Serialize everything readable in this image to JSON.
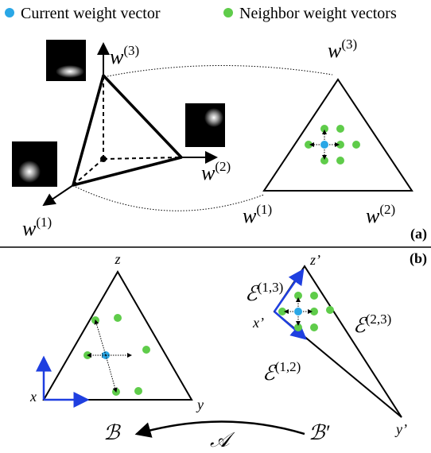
{
  "legend": [
    {
      "label": "Current weight vector"
    },
    {
      "label": "Neighbor weight vectors"
    }
  ],
  "panel_a": {
    "tag": "(a)",
    "axis_labels": [
      {
        "base": "w",
        "sup": "(3)"
      },
      {
        "base": "w",
        "sup": "(2)"
      },
      {
        "base": "w",
        "sup": "(1)"
      }
    ],
    "simplex_labels": [
      {
        "base": "w",
        "sup": "(3)"
      },
      {
        "base": "w",
        "sup": "(1)"
      },
      {
        "base": "w",
        "sup": "(2)"
      }
    ]
  },
  "panel_b": {
    "tag": "(b)",
    "left_labels": [
      "z",
      "x",
      "y"
    ],
    "right_labels": [
      "z’",
      "x’",
      "y’"
    ],
    "edge_labels": [
      {
        "base": "ℰ",
        "sup": "(1,3)"
      },
      {
        "base": "ℰ",
        "sup": "(2,3)"
      },
      {
        "base": "ℰ",
        "sup": "(1,2)"
      }
    ],
    "mapping": {
      "to": "ℬ",
      "map": "𝒜",
      "from": "ℬ′"
    }
  }
}
